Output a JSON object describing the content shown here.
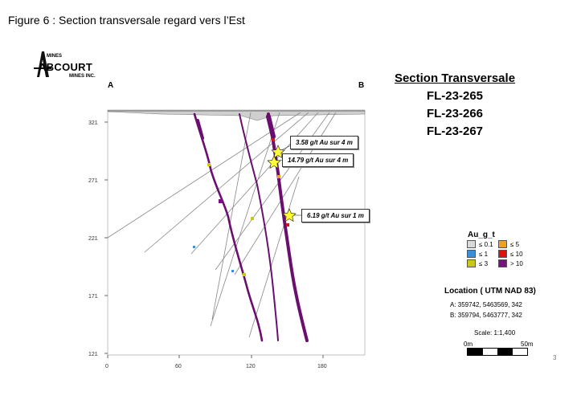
{
  "figure_title": "Figure 6 : Section transversale regard vers l’Est",
  "logo": {
    "top_text": "MINES",
    "name": "ABCOURT",
    "bottom_text": "MINES INC."
  },
  "section": {
    "heading": "Section Transversale",
    "holes": [
      "FL-23-265",
      "FL-23-266",
      "FL-23-267"
    ],
    "endpoint_a": "A",
    "endpoint_b": "B"
  },
  "y_axis_ticks": [
    "321",
    "271",
    "221",
    "171",
    "121"
  ],
  "x_axis_ticks": [
    "0",
    "60",
    "120",
    "180"
  ],
  "callouts": [
    "3.58 g/t Au sur 4 m",
    "14.79 g/t Au sur 4 m",
    "6.19 g/t Au sur 1 m"
  ],
  "legend": {
    "title": "Au_g_t",
    "items": [
      {
        "label": "≤ 0.1",
        "color": "#d9d9d9"
      },
      {
        "label": "≤ 5",
        "color": "#f0a020"
      },
      {
        "label": "≤ 1",
        "color": "#3a8fd8"
      },
      {
        "label": "≤ 10",
        "color": "#e01010"
      },
      {
        "label": "≤ 3",
        "color": "#c8c818"
      },
      {
        "label": "> 10",
        "color": "#7a1080"
      }
    ]
  },
  "location": {
    "title": "Location ( UTM NAD 83)",
    "a": "A:   359742, 5463569, 342",
    "b": "B:   359794, 5463777, 342"
  },
  "scale": {
    "label": "Scale: 1:1,400",
    "start": "0m",
    "end": "50m"
  },
  "page_number": "3"
}
